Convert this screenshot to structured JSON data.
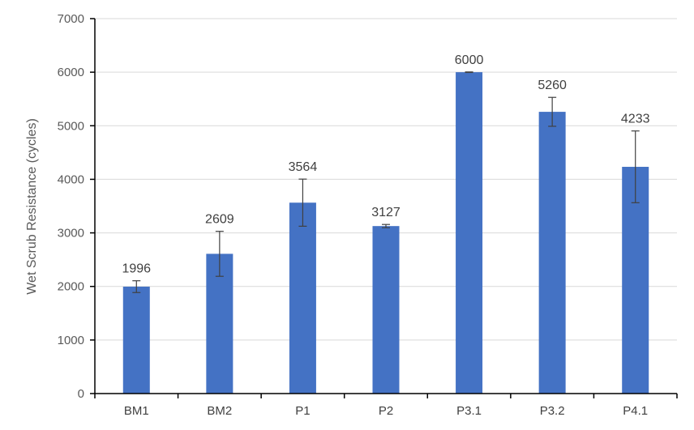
{
  "chart_data": {
    "type": "bar",
    "title": "",
    "xlabel": "",
    "ylabel": "Wet Scrub Resistance (cycles)",
    "ylim": [
      0,
      7000
    ],
    "yticks": [
      0,
      1000,
      2000,
      3000,
      4000,
      5000,
      6000,
      7000
    ],
    "grid": true,
    "categories": [
      "BM1",
      "BM2",
      "P1",
      "P2",
      "P3.1",
      "P3.2",
      "P4.1"
    ],
    "values": [
      1996,
      2609,
      3564,
      3127,
      6000,
      5260,
      4233
    ],
    "error": [
      110,
      420,
      440,
      30,
      5,
      270,
      670
    ],
    "data_labels": [
      "1996",
      "2609",
      "3564",
      "3127",
      "6000",
      "5260",
      "4233"
    ],
    "bar_color": "#4472c4"
  }
}
